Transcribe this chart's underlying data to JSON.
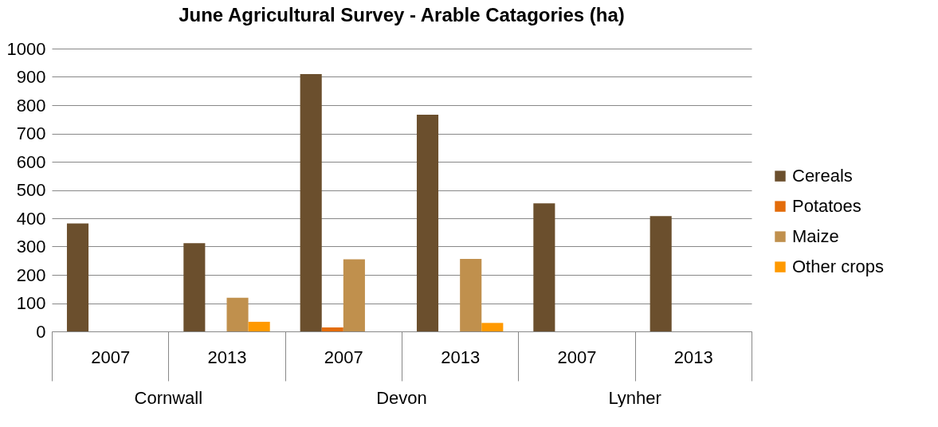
{
  "chart_data": {
    "type": "bar",
    "title": "June Agricultural Survey - Arable Catagories (ha)",
    "categories": [
      "2007",
      "2013",
      "2007",
      "2013",
      "2007",
      "2013"
    ],
    "annotations": [
      "Cornwall",
      "Devon",
      "Lynher"
    ],
    "series": [
      {
        "name": "Cereals",
        "color": "#6b4f2d",
        "values": [
          382,
          312,
          910,
          766,
          453,
          408
        ]
      },
      {
        "name": "Potatoes",
        "color": "#e36c0a",
        "values": [
          null,
          null,
          14,
          null,
          null,
          null
        ]
      },
      {
        "name": "Maize",
        "color": "#c0904d",
        "values": [
          null,
          119,
          255,
          256,
          null,
          null
        ]
      },
      {
        "name": "Other crops",
        "color": "#ff9900",
        "values": [
          null,
          34,
          null,
          30,
          null,
          null
        ]
      }
    ],
    "ylim": [
      0,
      1000
    ],
    "yticks": [
      0,
      100,
      200,
      300,
      400,
      500,
      600,
      700,
      800,
      900,
      1000
    ],
    "grid": "y",
    "legend": "right"
  }
}
